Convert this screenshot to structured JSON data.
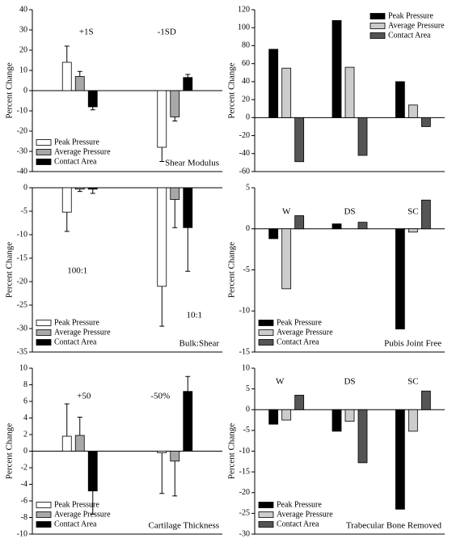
{
  "chart_data": [
    {
      "type": "bar",
      "ylabel": "Percent Change",
      "label": "Shear Modulus",
      "legend": "lower left",
      "categories": [
        "+1S",
        "-1SD"
      ],
      "ylim": [
        -40,
        40
      ],
      "yticks": [
        -40,
        -30,
        -20,
        -10,
        0,
        10,
        20,
        30,
        40
      ],
      "series": [
        {
          "name": "Peak Pressure",
          "color": "#ffffff",
          "values": [
            14,
            -28
          ],
          "errors": [
            8,
            7
          ]
        },
        {
          "name": "Average Pressure",
          "color": "#a8a8a8",
          "values": [
            7,
            -13
          ],
          "errors": [
            2.5,
            2
          ]
        },
        {
          "name": "Contact Area",
          "color": "#000000",
          "values": [
            -8,
            6.5
          ],
          "errors": [
            1.5,
            1.5
          ]
        }
      ]
    },
    {
      "type": "bar",
      "ylabel": "Percent Change",
      "legend": "upper right",
      "categories": [
        null,
        null,
        null
      ],
      "ylim": [
        -60,
        120
      ],
      "yticks": [
        -60,
        -40,
        -20,
        0,
        20,
        40,
        60,
        80,
        100,
        120
      ],
      "series": [
        {
          "name": "Peak Pressure",
          "color": "#000000",
          "values": [
            76,
            108,
            40
          ]
        },
        {
          "name": "Average Pressure",
          "color": "#cccccc",
          "values": [
            55,
            56,
            14
          ]
        },
        {
          "name": "Contact Area",
          "color": "#555555",
          "values": [
            -49,
            -42,
            -10
          ]
        }
      ]
    },
    {
      "type": "bar",
      "ylabel": "Percent Change",
      "label": "Bulk:Shear",
      "legend": "lower left",
      "categories": [
        "100:1",
        "10:1"
      ],
      "ylim": [
        -35,
        0
      ],
      "yticks": [
        -35,
        -30,
        -25,
        -20,
        -15,
        -10,
        -5,
        0
      ],
      "series": [
        {
          "name": "Peak Pressure",
          "color": "#ffffff",
          "values": [
            -5.2,
            -21
          ],
          "errors": [
            4.1,
            8.5
          ]
        },
        {
          "name": "Average Pressure",
          "color": "#a8a8a8",
          "values": [
            -0.3,
            -2.5
          ],
          "errors": [
            0.5,
            6
          ]
        },
        {
          "name": "Contact Area",
          "color": "#000000",
          "values": [
            -0.3,
            -8.5
          ],
          "errors": [
            0.9,
            9.3
          ]
        }
      ]
    },
    {
      "type": "bar",
      "ylabel": "Percent Change",
      "label": "Pubis Joint Free",
      "legend": "lower left",
      "categories": [
        "W",
        "DS",
        "SC"
      ],
      "ylim": [
        -15,
        5
      ],
      "yticks": [
        -15,
        -10,
        -5,
        0,
        5
      ],
      "series": [
        {
          "name": "Peak Pressure",
          "color": "#000000",
          "values": [
            -1.2,
            0.6,
            -12.2
          ]
        },
        {
          "name": "Average Pressure",
          "color": "#cccccc",
          "values": [
            -7.3,
            0,
            -0.4
          ]
        },
        {
          "name": "Contact Area",
          "color": "#555555",
          "values": [
            1.6,
            0.8,
            3.5
          ]
        }
      ]
    },
    {
      "type": "bar",
      "ylabel": "Percent Change",
      "label": "Cartilage Thickness",
      "legend": "lower left",
      "categories": [
        "+50",
        "-50%"
      ],
      "ylim": [
        -10,
        10
      ],
      "yticks": [
        -10,
        -8,
        -6,
        -4,
        -2,
        0,
        2,
        4,
        6,
        8,
        10
      ],
      "series": [
        {
          "name": "Peak Pressure",
          "color": "#ffffff",
          "values": [
            1.8,
            -0.2
          ],
          "errors": [
            3.9,
            4.9
          ]
        },
        {
          "name": "Average Pressure",
          "color": "#a8a8a8",
          "values": [
            1.9,
            -1.2
          ],
          "errors": [
            2.2,
            4.2
          ]
        },
        {
          "name": "Contact Area",
          "color": "#000000",
          "values": [
            -4.8,
            7.2
          ],
          "errors": [
            2.8,
            1.8
          ]
        }
      ]
    },
    {
      "type": "bar",
      "ylabel": "Percent Change",
      "label": "Trabecular Bone Removed",
      "legend": "lower left",
      "categories": [
        "W",
        "DS",
        "SC"
      ],
      "ylim": [
        -30,
        10
      ],
      "yticks": [
        -30,
        -25,
        -20,
        -15,
        -10,
        -5,
        0,
        5,
        10
      ],
      "series": [
        {
          "name": "Peak Pressure",
          "color": "#000000",
          "values": [
            -3.5,
            -5.2,
            -24
          ]
        },
        {
          "name": "Average Pressure",
          "color": "#cccccc",
          "values": [
            -2.5,
            -2.8,
            -5.2
          ]
        },
        {
          "name": "Contact Area",
          "color": "#555555",
          "values": [
            3.5,
            -12.8,
            4.5
          ]
        }
      ]
    }
  ]
}
